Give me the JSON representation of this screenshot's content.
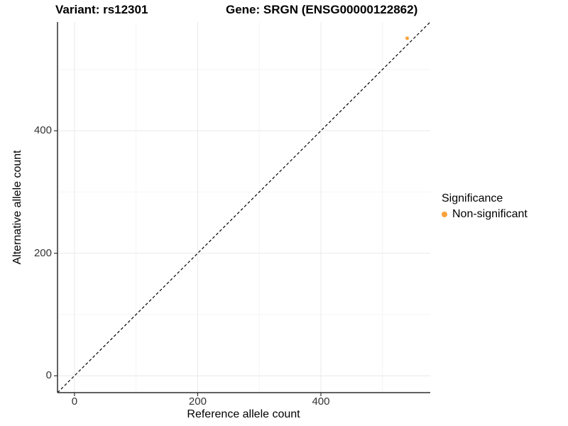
{
  "header": {
    "variant_title": "Variant: rs12301",
    "gene_title": "Gene: SRGN (ENSG00000122862)"
  },
  "axes": {
    "x": {
      "label": "Reference allele count"
    },
    "y": {
      "label": "Alternative allele count"
    }
  },
  "legend": {
    "title": "Significance",
    "items": [
      {
        "label": "Non-significant",
        "color": "#F9A23B"
      }
    ]
  },
  "colors": {
    "point": "#F9A23B",
    "grid_major": "#E9E9E9",
    "grid_minor": "#F4F4F4",
    "axis_line": "#2F2F2F",
    "tick_mark": "#333333",
    "reference_line": "#000000",
    "background": "#FFFFFF"
  },
  "chart_data": {
    "type": "scatter",
    "title": "Variant: rs12301   Gene: SRGN (ENSG00000122862)",
    "xlabel": "Reference allele count",
    "ylabel": "Alternative allele count",
    "xlim": [
      -27.5,
      577.5
    ],
    "ylim": [
      -27.5,
      577.5
    ],
    "x_major_ticks": [
      0,
      200,
      400
    ],
    "y_major_ticks": [
      0,
      200,
      400
    ],
    "x_minor_gridlines": [
      100,
      300,
      500
    ],
    "y_minor_gridlines": [
      100,
      300,
      500
    ],
    "grid": true,
    "legend_position": "right",
    "series": [
      {
        "name": "Non-significant",
        "color": "#F9A23B",
        "points": [
          {
            "x": 540,
            "y": 551
          }
        ]
      }
    ],
    "reference_line": {
      "type": "abline",
      "slope": 1,
      "intercept": 0,
      "linetype": "dashed",
      "color": "#000000"
    }
  }
}
